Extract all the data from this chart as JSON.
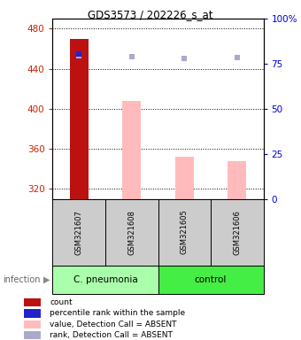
{
  "title": "GDS3573 / 202226_s_at",
  "samples": [
    "GSM321607",
    "GSM321608",
    "GSM321605",
    "GSM321606"
  ],
  "ylim_left": [
    310,
    490
  ],
  "yticks_left": [
    320,
    360,
    400,
    440,
    480
  ],
  "yticks_right": [
    0,
    25,
    50,
    75,
    100
  ],
  "ytick_labels_right": [
    "0",
    "25",
    "50",
    "75",
    "100%"
  ],
  "bar_values": [
    470,
    408,
    352,
    348
  ],
  "bar_colors": [
    "#bb1111",
    "#ffbbbb",
    "#ffbbbb",
    "#ffbbbb"
  ],
  "rank_marker_values": [
    453,
    452,
    450,
    451
  ],
  "rank_marker_color": "#aaaacc",
  "percentile_value": 455,
  "percentile_color": "#2222cc",
  "left_axis_color": "#cc2200",
  "right_axis_color": "#0000cc",
  "bar_width": 0.35,
  "group_info": [
    {
      "label": "C. pneumonia",
      "start": 0,
      "end": 2,
      "color": "#aaffaa"
    },
    {
      "label": "control",
      "start": 2,
      "end": 4,
      "color": "#44ee44"
    }
  ],
  "legend_items": [
    {
      "color": "#bb1111",
      "label": "count"
    },
    {
      "color": "#2222cc",
      "label": "percentile rank within the sample"
    },
    {
      "color": "#ffbbbb",
      "label": "value, Detection Call = ABSENT"
    },
    {
      "color": "#aaaacc",
      "label": "rank, Detection Call = ABSENT"
    }
  ],
  "bg_color": "#cccccc",
  "plot_bg": "#ffffff"
}
